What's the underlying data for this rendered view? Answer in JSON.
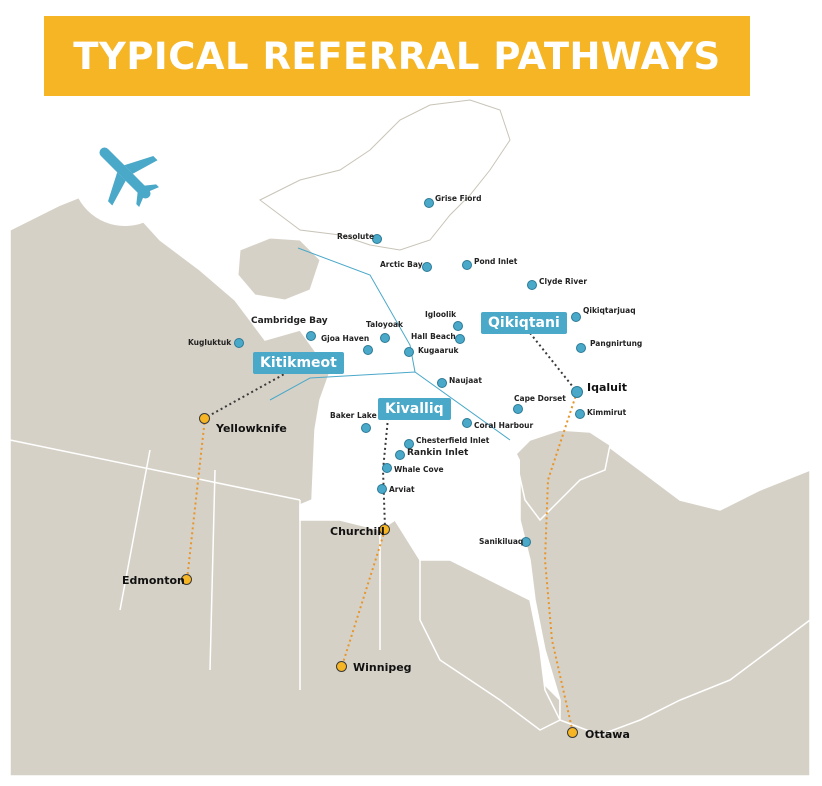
{
  "title": "TYPICAL REFERRAL PATHWAYS",
  "icon": "airplane-icon",
  "colors": {
    "banner": "#f5b524",
    "land": "#d6d1c6",
    "nunavut": "#ffffff",
    "community_dot": "#4aa8c9",
    "hub_dot": "#f5b524",
    "pathway": "#e8952a"
  },
  "regions": [
    {
      "name": "Kitikmeot"
    },
    {
      "name": "Kivalliq"
    },
    {
      "name": "Qikiqtani"
    }
  ],
  "hubs": [
    {
      "name": "Yellowknife"
    },
    {
      "name": "Edmonton"
    },
    {
      "name": "Churchill"
    },
    {
      "name": "Winnipeg"
    },
    {
      "name": "Iqaluit"
    },
    {
      "name": "Ottawa"
    }
  ],
  "communities": [
    "Grise Fiord",
    "Resolute",
    "Arctic Bay",
    "Pond Inlet",
    "Clyde River",
    "Qikiqtarjuaq",
    "Pangnirtung",
    "Kugluktuk",
    "Cambridge Bay",
    "Gjoa Haven",
    "Taloyoak",
    "Igloolik",
    "Hall Beach",
    "Kugaaruk",
    "Naujaat",
    "Baker Lake",
    "Cape Dorset",
    "Kimmirut",
    "Coral Harbour",
    "Chesterfield Inlet",
    "Rankin Inlet",
    "Whale Cove",
    "Arviat",
    "Sanikiluaq"
  ]
}
